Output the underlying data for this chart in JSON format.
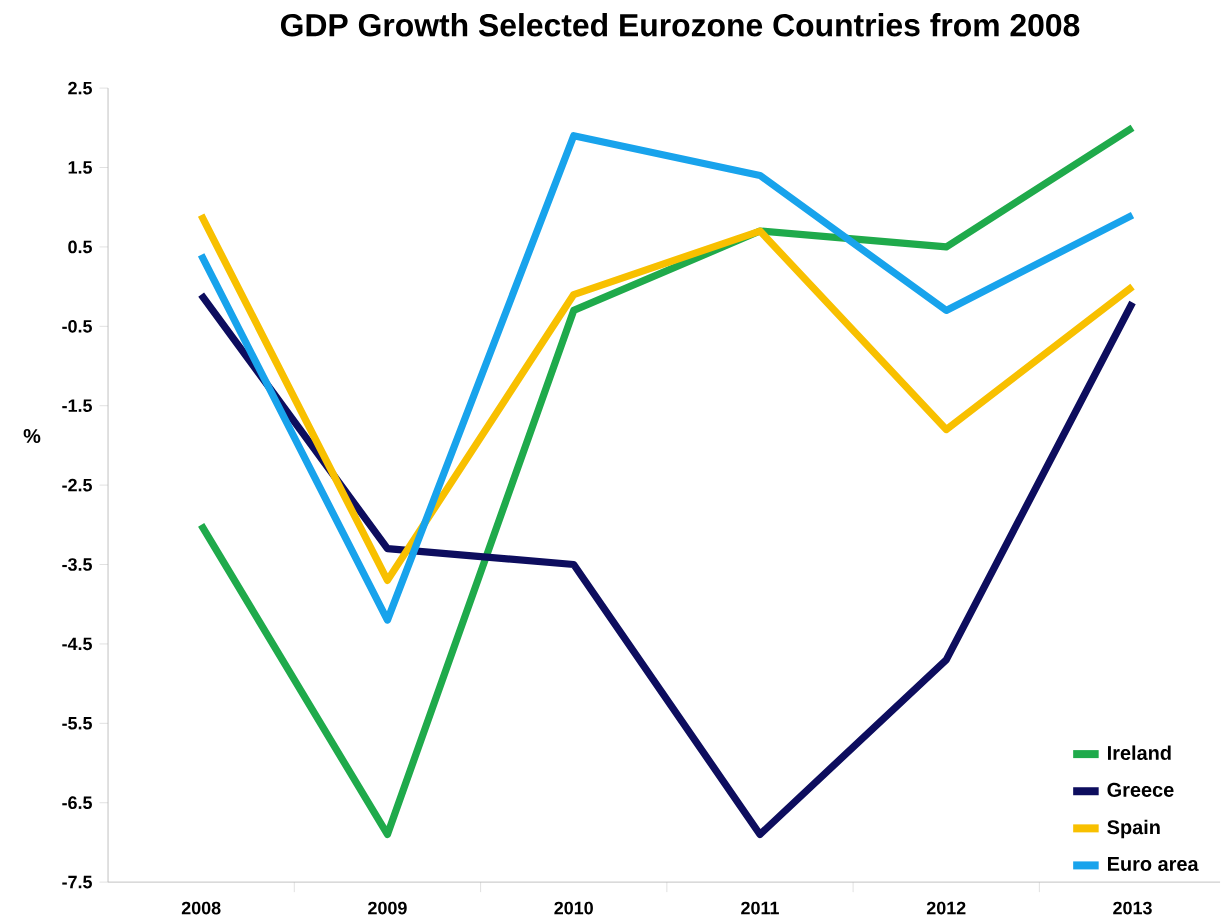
{
  "chart_data": {
    "type": "line",
    "title": "GDP Growth Selected Eurozone Countries from 2008",
    "ylabel": "%",
    "categories": [
      "2008",
      "2009",
      "2010",
      "2011",
      "2012",
      "2013"
    ],
    "series": [
      {
        "name": "Ireland",
        "color": "#1faa4b",
        "values": [
          -3.0,
          -6.9,
          -0.3,
          0.7,
          0.5,
          2.0
        ]
      },
      {
        "name": "Greece",
        "color": "#0d0d5e",
        "values": [
          -0.1,
          -3.3,
          -3.5,
          -6.9,
          -4.7,
          -0.2
        ]
      },
      {
        "name": "Spain",
        "color": "#f8c000",
        "values": [
          0.9,
          -3.7,
          -0.1,
          0.7,
          -1.8,
          0.0
        ]
      },
      {
        "name": "Euro area",
        "color": "#18a3ec",
        "values": [
          0.4,
          -4.2,
          1.9,
          1.4,
          -0.3,
          0.9
        ]
      }
    ],
    "ylim": [
      -7.5,
      2.5
    ],
    "yticks": [
      -7.5,
      -6.5,
      -5.5,
      -4.5,
      -3.5,
      -2.5,
      -1.5,
      -0.5,
      0.5,
      1.5,
      2.5
    ],
    "grid": false,
    "legend": "bottom right",
    "marker": "none",
    "line_style": "solid"
  }
}
